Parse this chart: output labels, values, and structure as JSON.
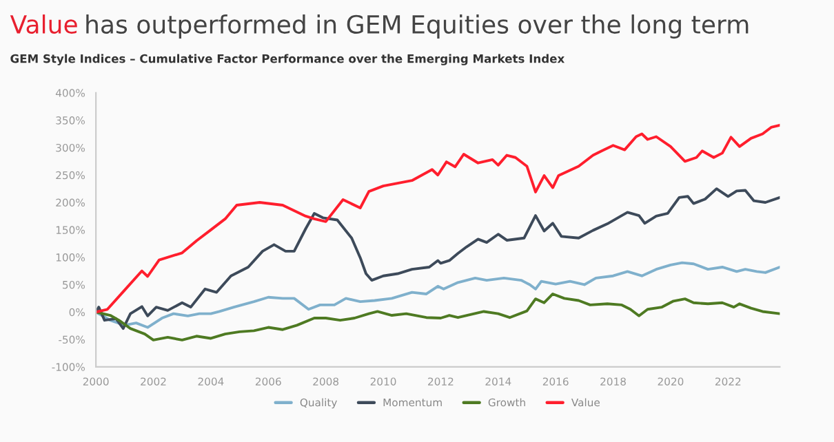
{
  "chart_data": {
    "type": "line",
    "title": "Value has outperformed in GEM Equities over the long term",
    "subtitle": "GEM Style Indices – Cumulative Factor Performance over the Emerging Markets Index",
    "xlim": [
      2000,
      2023.8
    ],
    "xticks": [
      2000,
      2002,
      2004,
      2006,
      2008,
      2010,
      2012,
      2014,
      2016,
      2018,
      2020,
      2022
    ],
    "ylim": [
      -100,
      400
    ],
    "yticks": [
      {
        "value": -100,
        "label": "-100%"
      },
      {
        "value": -50,
        "label": "-50%"
      },
      {
        "value": 0,
        "label": "0%"
      },
      {
        "value": 50,
        "label": "50%"
      },
      {
        "value": 100,
        "label": "100%"
      },
      {
        "value": 150,
        "label": "150%"
      },
      {
        "value": 200,
        "label": "200%"
      },
      {
        "value": 250,
        "label": "250%"
      },
      {
        "value": 300,
        "label": "300%"
      },
      {
        "value": 350,
        "label": "350%"
      },
      {
        "value": 400,
        "label": "400%"
      }
    ],
    "grid": false,
    "legend": "bottom",
    "series": [
      {
        "name": "Quality",
        "color": "#7fb0cc",
        "x": [
          2000,
          2000.5,
          2001,
          2001.4,
          2001.8,
          2002.3,
          2002.7,
          2003.2,
          2003.6,
          2004,
          2004.3,
          2004.8,
          2005.5,
          2006,
          2006.5,
          2006.9,
          2007.4,
          2007.8,
          2008.3,
          2008.7,
          2009.2,
          2009.7,
          2010.3,
          2011,
          2011.5,
          2011.9,
          2012.1,
          2012.6,
          2013.2,
          2013.6,
          2014.2,
          2014.8,
          2015.1,
          2015.3,
          2015.5,
          2016,
          2016.5,
          2017,
          2017.4,
          2018,
          2018.5,
          2019,
          2019.5,
          2020,
          2020.4,
          2020.8,
          2021.3,
          2021.8,
          2022.3,
          2022.6,
          2023,
          2023.3,
          2023.8
        ],
        "values": [
          0,
          -15,
          -24,
          -20,
          -28,
          -11,
          -3,
          -7,
          -3,
          -3,
          1,
          9,
          19,
          27,
          25,
          25,
          5,
          13,
          13,
          25,
          19,
          21,
          25,
          36,
          33,
          47,
          42,
          54,
          62,
          58,
          62,
          58,
          50,
          42,
          56,
          51,
          56,
          50,
          62,
          66,
          74,
          66,
          78,
          86,
          90,
          88,
          78,
          82,
          74,
          78,
          74,
          72,
          82
        ]
      },
      {
        "name": "Momentum",
        "color": "#3d4a5a",
        "x": [
          2000,
          2000.1,
          2000.3,
          2000.7,
          2000.95,
          2001.2,
          2001.6,
          2001.8,
          2002.1,
          2002.5,
          2003,
          2003.3,
          2003.8,
          2004.2,
          2004.7,
          2005.3,
          2005.8,
          2006.2,
          2006.6,
          2006.9,
          2007.3,
          2007.6,
          2007.9,
          2008.4,
          2008.9,
          2009.2,
          2009.4,
          2009.6,
          2010,
          2010.5,
          2011,
          2011.6,
          2011.9,
          2012,
          2012.3,
          2012.6,
          2012.9,
          2013.3,
          2013.6,
          2014,
          2014.3,
          2014.9,
          2015.3,
          2015.6,
          2015.9,
          2016.2,
          2016.8,
          2017.3,
          2017.8,
          2018.3,
          2018.5,
          2018.9,
          2019.1,
          2019.5,
          2019.9,
          2020.3,
          2020.6,
          2020.8,
          2021.2,
          2021.6,
          2022,
          2022.3,
          2022.6,
          2022.9,
          2023.3,
          2023.8
        ],
        "values": [
          0,
          9,
          -15,
          -12,
          -30,
          -3,
          10,
          -7,
          9,
          3,
          17,
          9,
          42,
          36,
          66,
          82,
          111,
          123,
          111,
          111,
          152,
          180,
          172,
          168,
          135,
          99,
          70,
          58,
          66,
          70,
          78,
          82,
          94,
          89,
          94,
          107,
          119,
          133,
          127,
          142,
          131,
          135,
          176,
          148,
          162,
          138,
          135,
          149,
          161,
          176,
          182,
          176,
          162,
          175,
          180,
          209,
          211,
          198,
          206,
          225,
          211,
          221,
          222,
          203,
          200,
          209
        ]
      },
      {
        "name": "Growth",
        "color": "#4e7a22",
        "x": [
          2000,
          2000.5,
          2000.8,
          2001.2,
          2001.7,
          2002,
          2002.5,
          2003,
          2003.5,
          2004,
          2004.5,
          2005,
          2005.5,
          2006,
          2006.5,
          2007,
          2007.6,
          2008,
          2008.5,
          2009,
          2009.5,
          2009.8,
          2010.3,
          2010.8,
          2011.5,
          2012,
          2012.3,
          2012.6,
          2013.5,
          2014,
          2014.4,
          2015,
          2015.3,
          2015.6,
          2015.9,
          2016.3,
          2016.8,
          2017.2,
          2017.8,
          2018.3,
          2018.6,
          2018.9,
          2019.2,
          2019.7,
          2020.1,
          2020.5,
          2020.8,
          2021.3,
          2021.8,
          2022.2,
          2022.4,
          2022.8,
          2023.2,
          2023.8
        ],
        "values": [
          0,
          -6,
          -15,
          -30,
          -40,
          -51,
          -46,
          -51,
          -44,
          -48,
          -40,
          -36,
          -34,
          -28,
          -32,
          -24,
          -11,
          -11,
          -15,
          -11,
          -3,
          1,
          -6,
          -3,
          -10,
          -11,
          -6,
          -10,
          1,
          -3,
          -10,
          2,
          24,
          17,
          33,
          25,
          21,
          13,
          15,
          13,
          5,
          -7,
          5,
          9,
          20,
          24,
          17,
          15,
          17,
          9,
          15,
          7,
          1,
          -3
        ]
      },
      {
        "name": "Value",
        "color": "#ff1e2d",
        "x": [
          2000,
          2000.4,
          2001,
          2001.6,
          2001.8,
          2002.2,
          2003,
          2003.5,
          2004,
          2004.5,
          2004.9,
          2005.7,
          2006.5,
          2007.3,
          2007.6,
          2008,
          2008.6,
          2009.2,
          2009.5,
          2010,
          2011,
          2011.7,
          2011.9,
          2012.2,
          2012.5,
          2012.8,
          2013.3,
          2013.8,
          2014,
          2014.3,
          2014.6,
          2015,
          2015.3,
          2015.6,
          2015.9,
          2016.1,
          2016.8,
          2017.3,
          2017.6,
          2018,
          2018.4,
          2018.8,
          2019,
          2019.2,
          2019.5,
          2020,
          2020.5,
          2020.9,
          2021.1,
          2021.5,
          2021.8,
          2022.1,
          2022.4,
          2022.8,
          2023.2,
          2023.5,
          2023.8
        ],
        "values": [
          0,
          5,
          40,
          75,
          65,
          95,
          108,
          130,
          150,
          170,
          195,
          200,
          195,
          175,
          170,
          165,
          205,
          190,
          220,
          230,
          240,
          260,
          250,
          274,
          265,
          288,
          272,
          278,
          268,
          286,
          282,
          266,
          219,
          249,
          227,
          249,
          266,
          286,
          294,
          304,
          296,
          320,
          325,
          315,
          320,
          302,
          275,
          282,
          294,
          282,
          290,
          319,
          302,
          317,
          325,
          337,
          341
        ]
      }
    ]
  }
}
